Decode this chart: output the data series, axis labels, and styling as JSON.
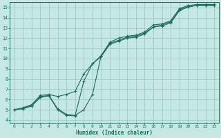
{
  "title": "",
  "xlabel": "Humidex (Indice chaleur)",
  "ylabel": "",
  "bg_color": "#c5e8e5",
  "grid_color": "#a0c8c5",
  "line_color": "#1e6b5a",
  "xlim": [
    -0.5,
    23.5
  ],
  "ylim": [
    3.7,
    15.5
  ],
  "xticks": [
    0,
    1,
    2,
    3,
    4,
    5,
    6,
    7,
    8,
    9,
    10,
    11,
    12,
    13,
    14,
    15,
    16,
    17,
    18,
    19,
    20,
    21,
    22,
    23
  ],
  "yticks": [
    4,
    5,
    6,
    7,
    8,
    9,
    10,
    11,
    12,
    13,
    14,
    15
  ],
  "line1_x": [
    0,
    1,
    2,
    3,
    4,
    5,
    6,
    7,
    8,
    9,
    10,
    11,
    12,
    13,
    14,
    15,
    16,
    17,
    18,
    19,
    20,
    21,
    22,
    23
  ],
  "line1_y": [
    5.0,
    5.2,
    5.5,
    6.4,
    6.5,
    6.3,
    6.5,
    6.8,
    8.5,
    9.5,
    10.3,
    11.5,
    11.8,
    12.1,
    12.2,
    12.5,
    13.1,
    13.3,
    13.6,
    14.8,
    15.1,
    15.2,
    15.2,
    15.2
  ],
  "line2_x": [
    0,
    1,
    2,
    3,
    4,
    5,
    6,
    7,
    8,
    9,
    10,
    11,
    12,
    13,
    14,
    15,
    16,
    17,
    18,
    19,
    20,
    21,
    22,
    23
  ],
  "line2_y": [
    5.0,
    5.15,
    5.45,
    6.3,
    6.4,
    5.1,
    4.55,
    4.45,
    5.0,
    6.5,
    10.3,
    11.6,
    12.0,
    12.2,
    12.3,
    12.6,
    13.3,
    13.4,
    13.7,
    14.9,
    15.2,
    15.3,
    15.3,
    15.3
  ],
  "line3_x": [
    0,
    1,
    2,
    3,
    4,
    5,
    6,
    7,
    8,
    9,
    10,
    11,
    12,
    13,
    14,
    15,
    16,
    17,
    18,
    19,
    20,
    21,
    22,
    23
  ],
  "line3_y": [
    5.0,
    5.1,
    5.35,
    6.2,
    6.35,
    5.0,
    4.45,
    4.4,
    7.8,
    9.5,
    10.2,
    11.4,
    11.7,
    12.0,
    12.1,
    12.4,
    13.1,
    13.2,
    13.5,
    14.7,
    15.05,
    15.2,
    15.2,
    15.2
  ]
}
